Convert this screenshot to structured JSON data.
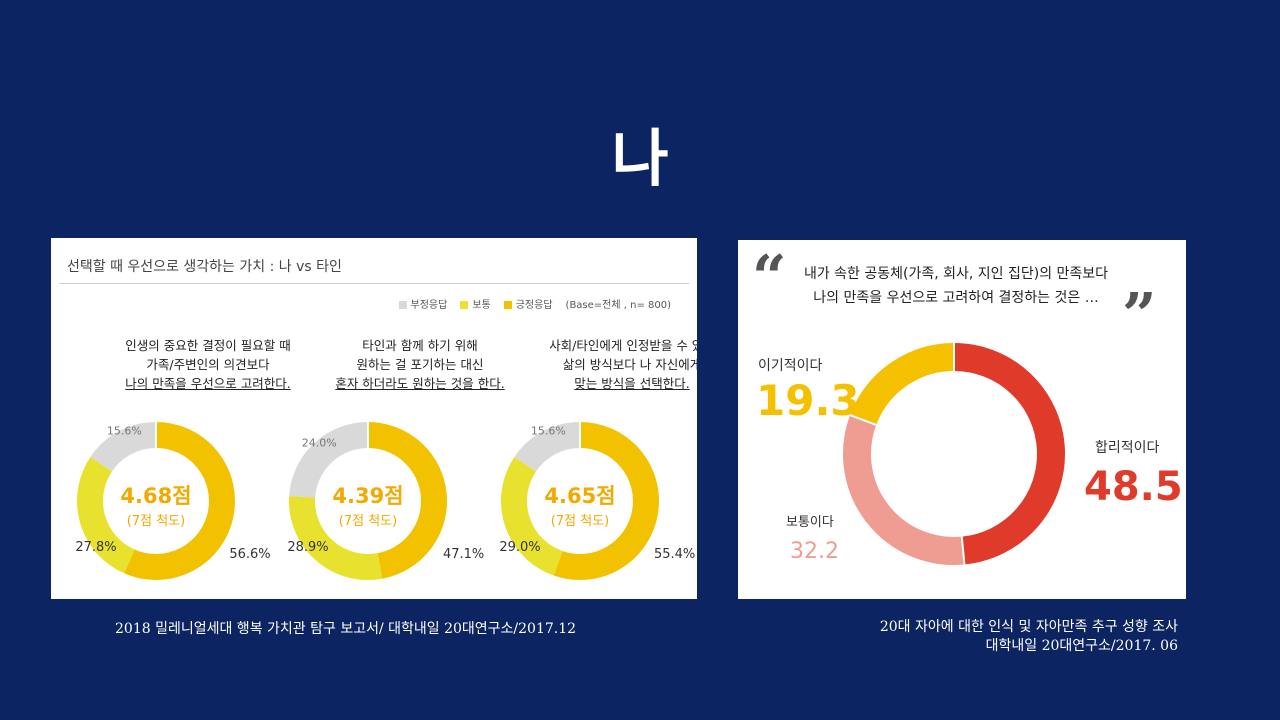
{
  "slide": {
    "title": "나"
  },
  "left": {
    "title": "선택할 때 우선으로 생각하는 가치 : 나 vs 타인",
    "legend": [
      {
        "label": "부정응답",
        "color": "#d9d9d9"
      },
      {
        "label": "보통",
        "color": "#e8e22e"
      },
      {
        "label": "긍정응답",
        "color": "#f2c200"
      }
    ],
    "base_note": "(Base=전체 , n= 800)",
    "questions": [
      {
        "lines": [
          "인생의 중요한 결정이 필요할 때",
          "가족/주변인의 의견보다",
          "나의 만족을 우선으로 고려한다."
        ]
      },
      {
        "lines": [
          "타인과 함께 하기 위해",
          "원하는 걸 포기하는 대신",
          "혼자 하더라도 원하는 것을 한다."
        ]
      },
      {
        "lines": [
          "사회/타인에게 인정받을 수 있는",
          "삶의 방식보다 나 자신에게",
          "맞는 방식을 선택한다."
        ]
      }
    ]
  },
  "right": {
    "quote_open": "“",
    "quote_close": "”",
    "quote_lines": [
      "내가 속한 공동체(가족, 회사, 지인 집단)의 만족보다",
      "나의 만족을 우선으로 고려하여 결정하는 것은 …"
    ]
  },
  "chart_data": [
    {
      "type": "pie",
      "variant": "donut",
      "title": "",
      "center_score": "4.68점",
      "center_scale": "(7점 척도)",
      "series": [
        {
          "name": "부정응답",
          "value": 15.6,
          "label": "15.6%",
          "color": "#d9d9d9"
        },
        {
          "name": "보통",
          "value": 27.8,
          "label": "27.8%",
          "color": "#e8e22e"
        },
        {
          "name": "긍정응답",
          "value": 56.6,
          "label": "56.6%",
          "color": "#f2c200"
        }
      ]
    },
    {
      "type": "pie",
      "variant": "donut",
      "title": "",
      "center_score": "4.39점",
      "center_scale": "(7점 척도)",
      "series": [
        {
          "name": "부정응답",
          "value": 24.0,
          "label": "24.0%",
          "color": "#d9d9d9"
        },
        {
          "name": "보통",
          "value": 28.9,
          "label": "28.9%",
          "color": "#e8e22e"
        },
        {
          "name": "긍정응답",
          "value": 47.1,
          "label": "47.1%",
          "color": "#f2c200"
        }
      ]
    },
    {
      "type": "pie",
      "variant": "donut",
      "title": "",
      "center_score": "4.65점",
      "center_scale": "(7점 척도)",
      "series": [
        {
          "name": "부정응답",
          "value": 15.6,
          "label": "15.6%",
          "color": "#d9d9d9"
        },
        {
          "name": "보통",
          "value": 29.0,
          "label": "29.0%",
          "color": "#e8e22e"
        },
        {
          "name": "긍정응답",
          "value": 55.4,
          "label": "55.4%",
          "color": "#f2c200"
        }
      ]
    },
    {
      "type": "pie",
      "variant": "donut",
      "title": "",
      "series": [
        {
          "name": "합리적이다",
          "value": 48.5,
          "label": "48.5",
          "color": "#e03a2a"
        },
        {
          "name": "보통이다",
          "value": 32.2,
          "label": "32.2",
          "color": "#ef9d92"
        },
        {
          "name": "이기적이다",
          "value": 19.3,
          "label": "19.3",
          "color": "#f5c000"
        }
      ]
    }
  ],
  "captions": {
    "left": "2018 밀레니얼세대 행복 가치관 탐구 보고서/ 대학내일 20대연구소/2017.12",
    "right_line1": "20대 자아에 대한 인식 및 자아만족 추구 성향 조사",
    "right_line2": "대학내일 20대연구소/2017. 06"
  }
}
